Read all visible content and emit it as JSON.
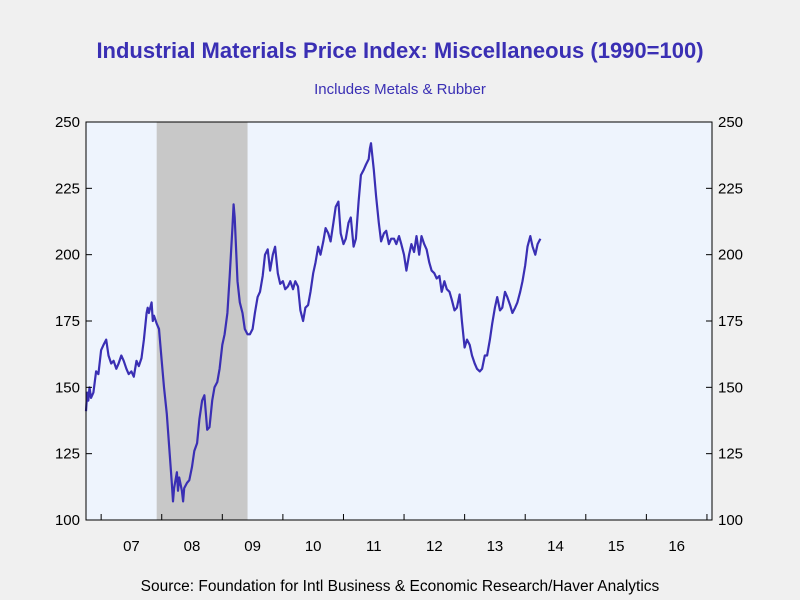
{
  "chart_data": {
    "type": "line",
    "title": "Industrial Materials Price Index: Miscellaneous (1990=100)",
    "subtitle": "Includes Metals & Rubber",
    "source": "Source:  Foundation for Intl Business & Economic Research/Haver Analytics",
    "x_range": [
      "2006-10",
      "2017-02"
    ],
    "ylim": [
      100,
      250
    ],
    "yticks": [
      100,
      125,
      150,
      175,
      200,
      225,
      250
    ],
    "y_axes": "left-and-right",
    "xticks": [
      "07",
      "08",
      "09",
      "10",
      "11",
      "12",
      "13",
      "14",
      "15",
      "16"
    ],
    "recession": {
      "start": "2007-12",
      "end": "2009-06"
    },
    "colors": {
      "line": "#3a2fb4",
      "plot_bg": "#eef4fd",
      "recession": "#c8c8c8",
      "title": "#3a2fb4",
      "page_bg": "#f0f0f0"
    },
    "series": [
      {
        "values": [
          [
            "2006-10-01",
            141
          ],
          [
            "2006-10-08",
            148
          ],
          [
            "2006-10-15",
            145
          ],
          [
            "2006-10-22",
            150
          ],
          [
            "2006-11-01",
            146
          ],
          [
            "2006-11-15",
            148
          ],
          [
            "2006-12-01",
            156
          ],
          [
            "2006-12-15",
            155
          ],
          [
            "2007-01-01",
            164
          ],
          [
            "2007-01-15",
            166
          ],
          [
            "2007-02-01",
            168
          ],
          [
            "2007-02-15",
            162
          ],
          [
            "2007-03-01",
            159
          ],
          [
            "2007-03-15",
            160
          ],
          [
            "2007-04-01",
            157
          ],
          [
            "2007-04-15",
            159
          ],
          [
            "2007-05-01",
            162
          ],
          [
            "2007-05-15",
            160
          ],
          [
            "2007-06-01",
            157
          ],
          [
            "2007-06-15",
            155
          ],
          [
            "2007-07-01",
            156
          ],
          [
            "2007-07-15",
            154
          ],
          [
            "2007-08-01",
            160
          ],
          [
            "2007-08-15",
            158
          ],
          [
            "2007-09-01",
            161
          ],
          [
            "2007-09-15",
            168
          ],
          [
            "2007-10-01",
            178
          ],
          [
            "2007-10-08",
            180
          ],
          [
            "2007-10-15",
            178
          ],
          [
            "2007-11-01",
            182
          ],
          [
            "2007-11-08",
            175
          ],
          [
            "2007-11-15",
            177
          ],
          [
            "2007-12-01",
            174
          ],
          [
            "2007-12-15",
            172
          ],
          [
            "2008-01-01",
            160
          ],
          [
            "2008-01-15",
            150
          ],
          [
            "2008-02-01",
            140
          ],
          [
            "2008-02-15",
            128
          ],
          [
            "2008-03-01",
            114
          ],
          [
            "2008-03-08",
            107
          ],
          [
            "2008-03-15",
            112
          ],
          [
            "2008-04-01",
            118
          ],
          [
            "2008-04-08",
            111
          ],
          [
            "2008-04-15",
            116
          ],
          [
            "2008-05-01",
            111
          ],
          [
            "2008-05-08",
            107
          ],
          [
            "2008-05-15",
            112
          ],
          [
            "2008-06-01",
            114
          ],
          [
            "2008-06-15",
            115
          ],
          [
            "2008-07-01",
            120
          ],
          [
            "2008-07-15",
            126
          ],
          [
            "2008-08-01",
            129
          ],
          [
            "2008-08-15",
            138
          ],
          [
            "2008-09-01",
            145
          ],
          [
            "2008-09-15",
            147
          ],
          [
            "2008-10-01",
            134
          ],
          [
            "2008-10-15",
            135
          ],
          [
            "2008-11-01",
            145
          ],
          [
            "2008-11-15",
            150
          ],
          [
            "2008-12-01",
            152
          ],
          [
            "2008-12-15",
            157
          ],
          [
            "2009-01-01",
            166
          ],
          [
            "2009-01-15",
            170
          ],
          [
            "2009-02-01",
            178
          ],
          [
            "2009-02-15",
            192
          ],
          [
            "2009-03-01",
            210
          ],
          [
            "2009-03-08",
            219
          ],
          [
            "2009-03-15",
            214
          ],
          [
            "2009-04-01",
            190
          ],
          [
            "2009-04-15",
            182
          ],
          [
            "2009-05-01",
            178
          ],
          [
            "2009-05-15",
            172
          ],
          [
            "2009-06-01",
            170
          ],
          [
            "2009-06-15",
            170
          ],
          [
            "2009-07-01",
            172
          ],
          [
            "2009-07-15",
            178
          ],
          [
            "2009-08-01",
            184
          ],
          [
            "2009-08-15",
            186
          ],
          [
            "2009-09-01",
            192
          ],
          [
            "2009-09-15",
            200
          ],
          [
            "2009-10-01",
            202
          ],
          [
            "2009-10-15",
            194
          ],
          [
            "2009-11-01",
            200
          ],
          [
            "2009-11-15",
            203
          ],
          [
            "2009-12-01",
            193
          ],
          [
            "2009-12-15",
            189
          ],
          [
            "2010-01-01",
            190
          ],
          [
            "2010-01-15",
            187
          ],
          [
            "2010-02-01",
            188
          ],
          [
            "2010-02-15",
            190
          ],
          [
            "2010-03-01",
            187
          ],
          [
            "2010-03-15",
            190
          ],
          [
            "2010-04-01",
            188
          ],
          [
            "2010-04-15",
            179
          ],
          [
            "2010-05-01",
            175
          ],
          [
            "2010-05-15",
            180
          ],
          [
            "2010-06-01",
            181
          ],
          [
            "2010-06-15",
            186
          ],
          [
            "2010-07-01",
            193
          ],
          [
            "2010-07-15",
            197
          ],
          [
            "2010-08-01",
            203
          ],
          [
            "2010-08-15",
            200
          ],
          [
            "2010-09-01",
            205
          ],
          [
            "2010-09-15",
            210
          ],
          [
            "2010-10-01",
            208
          ],
          [
            "2010-10-15",
            205
          ],
          [
            "2010-11-01",
            212
          ],
          [
            "2010-11-15",
            218
          ],
          [
            "2010-12-01",
            220
          ],
          [
            "2010-12-15",
            208
          ],
          [
            "2011-01-01",
            204
          ],
          [
            "2011-01-15",
            206
          ],
          [
            "2011-02-01",
            212
          ],
          [
            "2011-02-15",
            214
          ],
          [
            "2011-03-01",
            203
          ],
          [
            "2011-03-15",
            206
          ],
          [
            "2011-04-01",
            220
          ],
          [
            "2011-04-15",
            230
          ],
          [
            "2011-05-01",
            232
          ],
          [
            "2011-05-15",
            234
          ],
          [
            "2011-06-01",
            236
          ],
          [
            "2011-06-08",
            240
          ],
          [
            "2011-06-15",
            242
          ],
          [
            "2011-07-01",
            232
          ],
          [
            "2011-07-15",
            222
          ],
          [
            "2011-08-01",
            212
          ],
          [
            "2011-08-15",
            205
          ],
          [
            "2011-09-01",
            208
          ],
          [
            "2011-09-15",
            209
          ],
          [
            "2011-10-01",
            204
          ],
          [
            "2011-10-15",
            206
          ],
          [
            "2011-11-01",
            206
          ],
          [
            "2011-11-15",
            204
          ],
          [
            "2011-12-01",
            207
          ],
          [
            "2011-12-15",
            204
          ],
          [
            "2012-01-01",
            200
          ],
          [
            "2012-01-15",
            194
          ],
          [
            "2012-02-01",
            200
          ],
          [
            "2012-02-15",
            204
          ],
          [
            "2012-03-01",
            201
          ],
          [
            "2012-03-15",
            207
          ],
          [
            "2012-04-01",
            200
          ],
          [
            "2012-04-15",
            207
          ],
          [
            "2012-05-01",
            204
          ],
          [
            "2012-05-15",
            202
          ],
          [
            "2012-06-01",
            197
          ],
          [
            "2012-06-15",
            194
          ],
          [
            "2012-07-01",
            193
          ],
          [
            "2012-07-15",
            191
          ],
          [
            "2012-08-01",
            192
          ],
          [
            "2012-08-15",
            186
          ],
          [
            "2012-09-01",
            190
          ],
          [
            "2012-09-15",
            187
          ],
          [
            "2012-10-01",
            186
          ],
          [
            "2012-10-15",
            183
          ],
          [
            "2012-11-01",
            179
          ],
          [
            "2012-11-15",
            180
          ],
          [
            "2012-12-01",
            185
          ],
          [
            "2012-12-15",
            175
          ],
          [
            "2013-01-01",
            165
          ],
          [
            "2013-01-15",
            168
          ],
          [
            "2013-02-01",
            166
          ],
          [
            "2013-02-15",
            162
          ],
          [
            "2013-03-01",
            159
          ],
          [
            "2013-03-15",
            157
          ],
          [
            "2013-04-01",
            156
          ],
          [
            "2013-04-15",
            157
          ],
          [
            "2013-05-01",
            162
          ],
          [
            "2013-05-15",
            162
          ],
          [
            "2013-06-01",
            168
          ],
          [
            "2013-06-15",
            174
          ],
          [
            "2013-07-01",
            180
          ],
          [
            "2013-07-15",
            184
          ],
          [
            "2013-08-01",
            179
          ],
          [
            "2013-08-15",
            180
          ],
          [
            "2013-09-01",
            186
          ],
          [
            "2013-09-15",
            184
          ],
          [
            "2013-10-01",
            181
          ],
          [
            "2013-10-15",
            178
          ],
          [
            "2013-11-01",
            180
          ],
          [
            "2013-11-15",
            182
          ],
          [
            "2013-12-01",
            186
          ],
          [
            "2013-12-15",
            190
          ],
          [
            "2014-01-01",
            196
          ],
          [
            "2014-01-15",
            203
          ],
          [
            "2014-02-01",
            207
          ],
          [
            "2014-02-15",
            203
          ],
          [
            "2014-03-01",
            200
          ],
          [
            "2014-03-15",
            204
          ],
          [
            "2014-04-01",
            206
          ]
        ]
      }
    ]
  }
}
